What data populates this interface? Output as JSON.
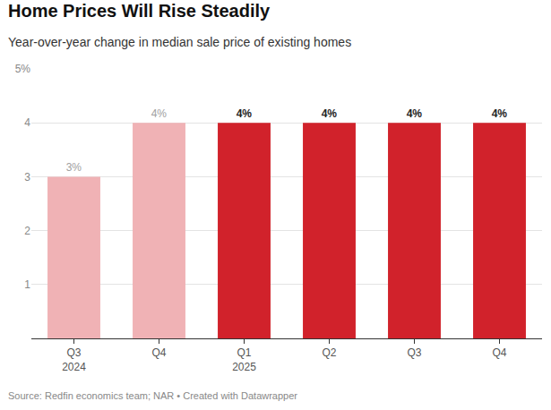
{
  "chart_data": {
    "type": "bar",
    "title": "Home Prices Will Rise Steadily",
    "subtitle": "Year-over-year change in median sale price of existing homes",
    "source": "Source: Redfin economics team; NAR • Created with Datawrapper",
    "categories": [
      "Q3\n2024",
      "Q4",
      "Q1\n2025",
      "Q2",
      "Q3",
      "Q4"
    ],
    "values": [
      3,
      4,
      4,
      4,
      4,
      4
    ],
    "value_labels": [
      "3%",
      "4%",
      "4%",
      "4%",
      "4%",
      "4%"
    ],
    "colors": [
      "#f0b2b5",
      "#f0b2b5",
      "#d1222b",
      "#d1222b",
      "#d1222b",
      "#d1222b"
    ],
    "data_labels": true,
    "ylim": [
      0,
      5
    ],
    "yticks": [
      1,
      2,
      3,
      4,
      {
        "value": 5,
        "label": "5%"
      }
    ],
    "grid": true
  }
}
